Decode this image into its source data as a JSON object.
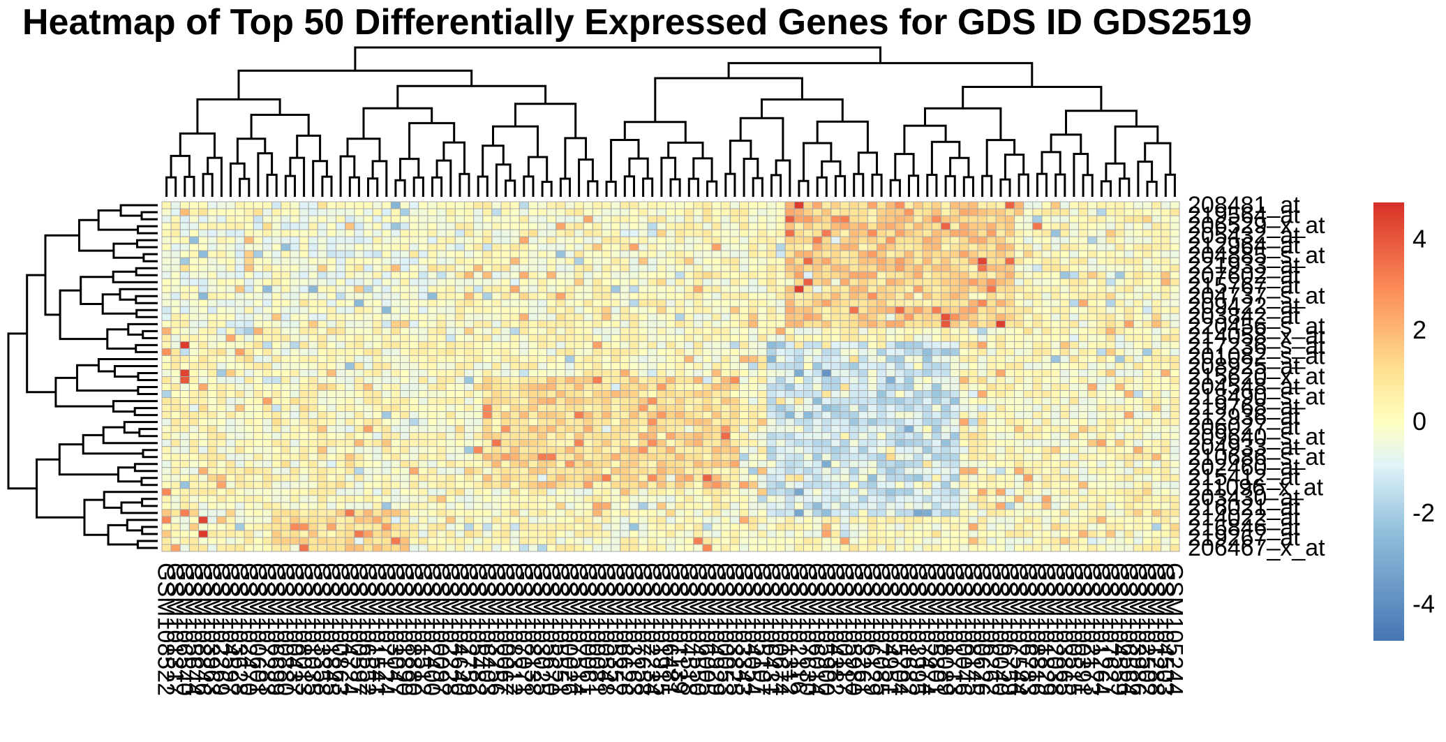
{
  "chart_data": {
    "type": "heatmap",
    "title": "Heatmap of Top 50 Differentially Expressed Genes for GDS ID GDS2519",
    "xlabel": "",
    "ylabel": "",
    "n_rows": 50,
    "n_cols": 111,
    "row_labels_visible": [
      "208481_at",
      "219564_at",
      "206529_x_at",
      "205432_at",
      "212964_at",
      "204885_s_at",
      "221933_at",
      "207602_at",
      "215767_at",
      "204737_s_at",
      "209422_at",
      "203842_at",
      "220456_s_at",
      "214058_x_at",
      "217236_s_at",
      "201082_s_at",
      "208925_at",
      "215620_x_at",
      "204548_at",
      "218490_s_at",
      "219768_at",
      "212936_at",
      "206027_at",
      "209640_s_at",
      "204933_at",
      "210686_s_at",
      "202460_at",
      "215412_at",
      "211096_x_at",
      "203430_at",
      "216021_at",
      "214022_at",
      "216846_at",
      "219267_at",
      "206467_x_at"
    ],
    "column_label_prefix": "GSM",
    "color_scale": {
      "breaks": [
        -4,
        -2,
        0,
        2,
        4
      ],
      "tick_labels": [
        "-4",
        "-2",
        "0",
        "2",
        "4"
      ],
      "range": [
        -4.8,
        4.8
      ],
      "colors": [
        "#4575b4",
        "#91bfdb",
        "#e0f3f8",
        "#ffffbf",
        "#fee090",
        "#fc8d59",
        "#d73027"
      ]
    },
    "grid": true,
    "legend_placement": "right",
    "hot_spots": [
      {
        "row": 1,
        "col": 70,
        "value": 4.6
      },
      {
        "row": 3,
        "col": 69,
        "value": 3.8
      },
      {
        "row": 6,
        "col": 72,
        "value": 3.2
      },
      {
        "row": 3,
        "col": 75,
        "value": 3.2
      },
      {
        "row": 4,
        "col": 96,
        "value": 3.4
      },
      {
        "row": 9,
        "col": 71,
        "value": 3.6
      },
      {
        "row": 9,
        "col": 90,
        "value": 4.4
      },
      {
        "row": 13,
        "col": 70,
        "value": 4.5
      },
      {
        "row": 12,
        "col": 71,
        "value": 3.8
      },
      {
        "row": 16,
        "col": 85,
        "value": 3.2
      },
      {
        "row": 18,
        "col": 86,
        "value": 4.0
      },
      {
        "row": 18,
        "col": 92,
        "value": 4.5
      },
      {
        "row": 15,
        "col": 90,
        "value": 3.0
      },
      {
        "row": 21,
        "col": 3,
        "value": 4.6
      },
      {
        "row": 25,
        "col": 3,
        "value": 4.4
      },
      {
        "row": 26,
        "col": 3,
        "value": 4.0
      },
      {
        "row": 22,
        "col": 1,
        "value": 2.8
      },
      {
        "row": 30,
        "col": 36,
        "value": 3.0
      },
      {
        "row": 31,
        "col": 36,
        "value": 3.0
      },
      {
        "row": 35,
        "col": 37,
        "value": 3.4
      },
      {
        "row": 36,
        "col": 35,
        "value": 3.0
      },
      {
        "row": 26,
        "col": 48,
        "value": 3.2
      },
      {
        "row": 29,
        "col": 54,
        "value": 2.8
      },
      {
        "row": 32,
        "col": 54,
        "value": 2.8
      },
      {
        "row": 42,
        "col": 1,
        "value": 3.0
      },
      {
        "row": 45,
        "col": 3,
        "value": 3.2
      },
      {
        "row": 46,
        "col": 5,
        "value": 4.4
      },
      {
        "row": 48,
        "col": 5,
        "value": 4.6
      },
      {
        "row": 47,
        "col": 16,
        "value": 2.8
      },
      {
        "row": 49,
        "col": 59,
        "value": 3.2
      },
      {
        "row": 50,
        "col": 60,
        "value": 3.0
      },
      {
        "row": 46,
        "col": 1,
        "value": 3.0
      }
    ],
    "cold_spots": [
      {
        "row": 42,
        "col": 70,
        "value": -3.2
      },
      {
        "row": 31,
        "col": 71,
        "value": -2.6
      },
      {
        "row": 30,
        "col": 73,
        "value": -2.4
      },
      {
        "row": 6,
        "col": 4,
        "value": -2.4
      },
      {
        "row": 40,
        "col": 78,
        "value": -2.4
      },
      {
        "row": 44,
        "col": 25,
        "value": -2.2
      }
    ]
  }
}
